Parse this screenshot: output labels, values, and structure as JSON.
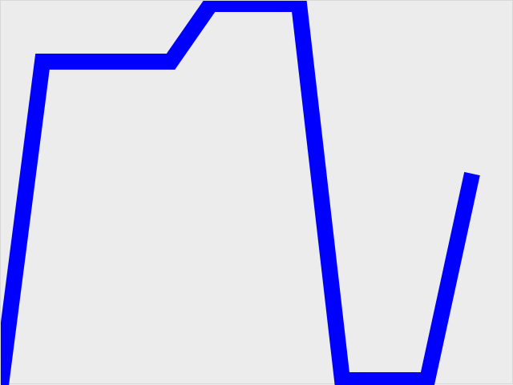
{
  "canvas": {
    "background_color": "#ececed",
    "border_color": "#d8d8d8"
  },
  "stroke": {
    "color": "#0000ff"
  }
}
